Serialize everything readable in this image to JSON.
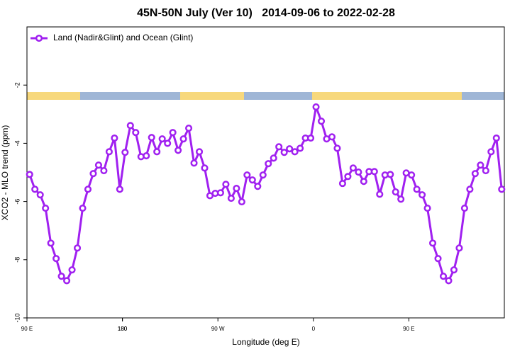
{
  "chart_data": {
    "type": "line",
    "title": "45N-50N July (Ver 10)   2014-09-06 to 2022-02-28",
    "xlabel": "Longitude (deg E)",
    "ylabel": "XCO2 - MLO trend (ppm)",
    "x": [
      92.5,
      97.5,
      102.5,
      107.5,
      112.5,
      117.5,
      122.5,
      127.5,
      132.5,
      137.5,
      142.5,
      147.5,
      152.5,
      157.5,
      162.5,
      167.5,
      172.5,
      177.5,
      182.5,
      187.5,
      192.5,
      197.5,
      202.5,
      207.5,
      212.5,
      217.5,
      222.5,
      227.5,
      232.5,
      237.5,
      242.5,
      247.5,
      252.5,
      257.5,
      262.5,
      267.5,
      272.5,
      277.5,
      282.5,
      287.5,
      292.5,
      297.5,
      302.5,
      307.5,
      312.5,
      317.5,
      322.5,
      327.5,
      332.5,
      337.5,
      342.5,
      347.5,
      352.5,
      357.5,
      362.5,
      367.5,
      372.5,
      377.5,
      382.5,
      387.5,
      392.5,
      397.5,
      402.5,
      407.5,
      412.5,
      417.5,
      422.5,
      427.5,
      432.5,
      437.5,
      442.5,
      447.5,
      452.5,
      457.5,
      462.5,
      467.5,
      472.5,
      477.5,
      482.5,
      487.5,
      492.5,
      497.5,
      502.5,
      507.5,
      512.5,
      517.5,
      522.5,
      527.5,
      532.5,
      537.5
    ],
    "series": [
      {
        "name": "Land (Nadir&Glint) and Ocean (Glint)",
        "color": "#a020f0",
        "values": [
          -5.07,
          -5.58,
          -5.77,
          -6.23,
          -7.43,
          -7.96,
          -8.57,
          -8.72,
          -8.35,
          -7.6,
          -6.23,
          -5.58,
          -5.04,
          -4.75,
          -4.94,
          -4.29,
          -3.82,
          -5.58,
          -4.31,
          -3.39,
          -3.63,
          -4.46,
          -4.43,
          -3.8,
          -4.29,
          -3.85,
          -4.0,
          -3.63,
          -4.24,
          -3.85,
          -3.48,
          -4.68,
          -4.29,
          -4.85,
          -5.8,
          -5.72,
          -5.7,
          -5.41,
          -5.89,
          -5.55,
          -6.01,
          -5.09,
          -5.26,
          -5.48,
          -5.09,
          -4.7,
          -4.51,
          -4.12,
          -4.31,
          -4.19,
          -4.29,
          -4.17,
          -3.82,
          -3.82,
          -2.75,
          -3.24,
          -3.85,
          -3.78,
          -4.17,
          -5.38,
          -5.14,
          -4.85,
          -4.99,
          -5.31,
          -4.97,
          -4.97,
          -5.75,
          -5.09,
          -5.07,
          -5.67,
          -5.92,
          -5.02,
          -5.09,
          -5.58,
          -5.77,
          -6.23,
          -7.43,
          -7.96,
          -8.57,
          -8.72,
          -8.35,
          -7.6,
          -6.23,
          -5.58,
          -5.04,
          -4.75,
          -4.94,
          -4.29,
          -3.82,
          -5.58
        ]
      }
    ],
    "xlim": [
      90,
      540
    ],
    "xticks": [
      {
        "value": 90,
        "label": "90 E"
      },
      180,
      {
        "value": 270,
        "label": "90 W"
      },
      {
        "value": 360,
        "label": "0"
      },
      {
        "value": 450,
        "label": "90 E"
      },
      180.0001
    ],
    "ylim": [
      -10,
      0
    ],
    "yticks": [
      -10,
      -8,
      -6,
      -4,
      -2
    ],
    "legend": "top-left",
    "grid": false
  }
}
